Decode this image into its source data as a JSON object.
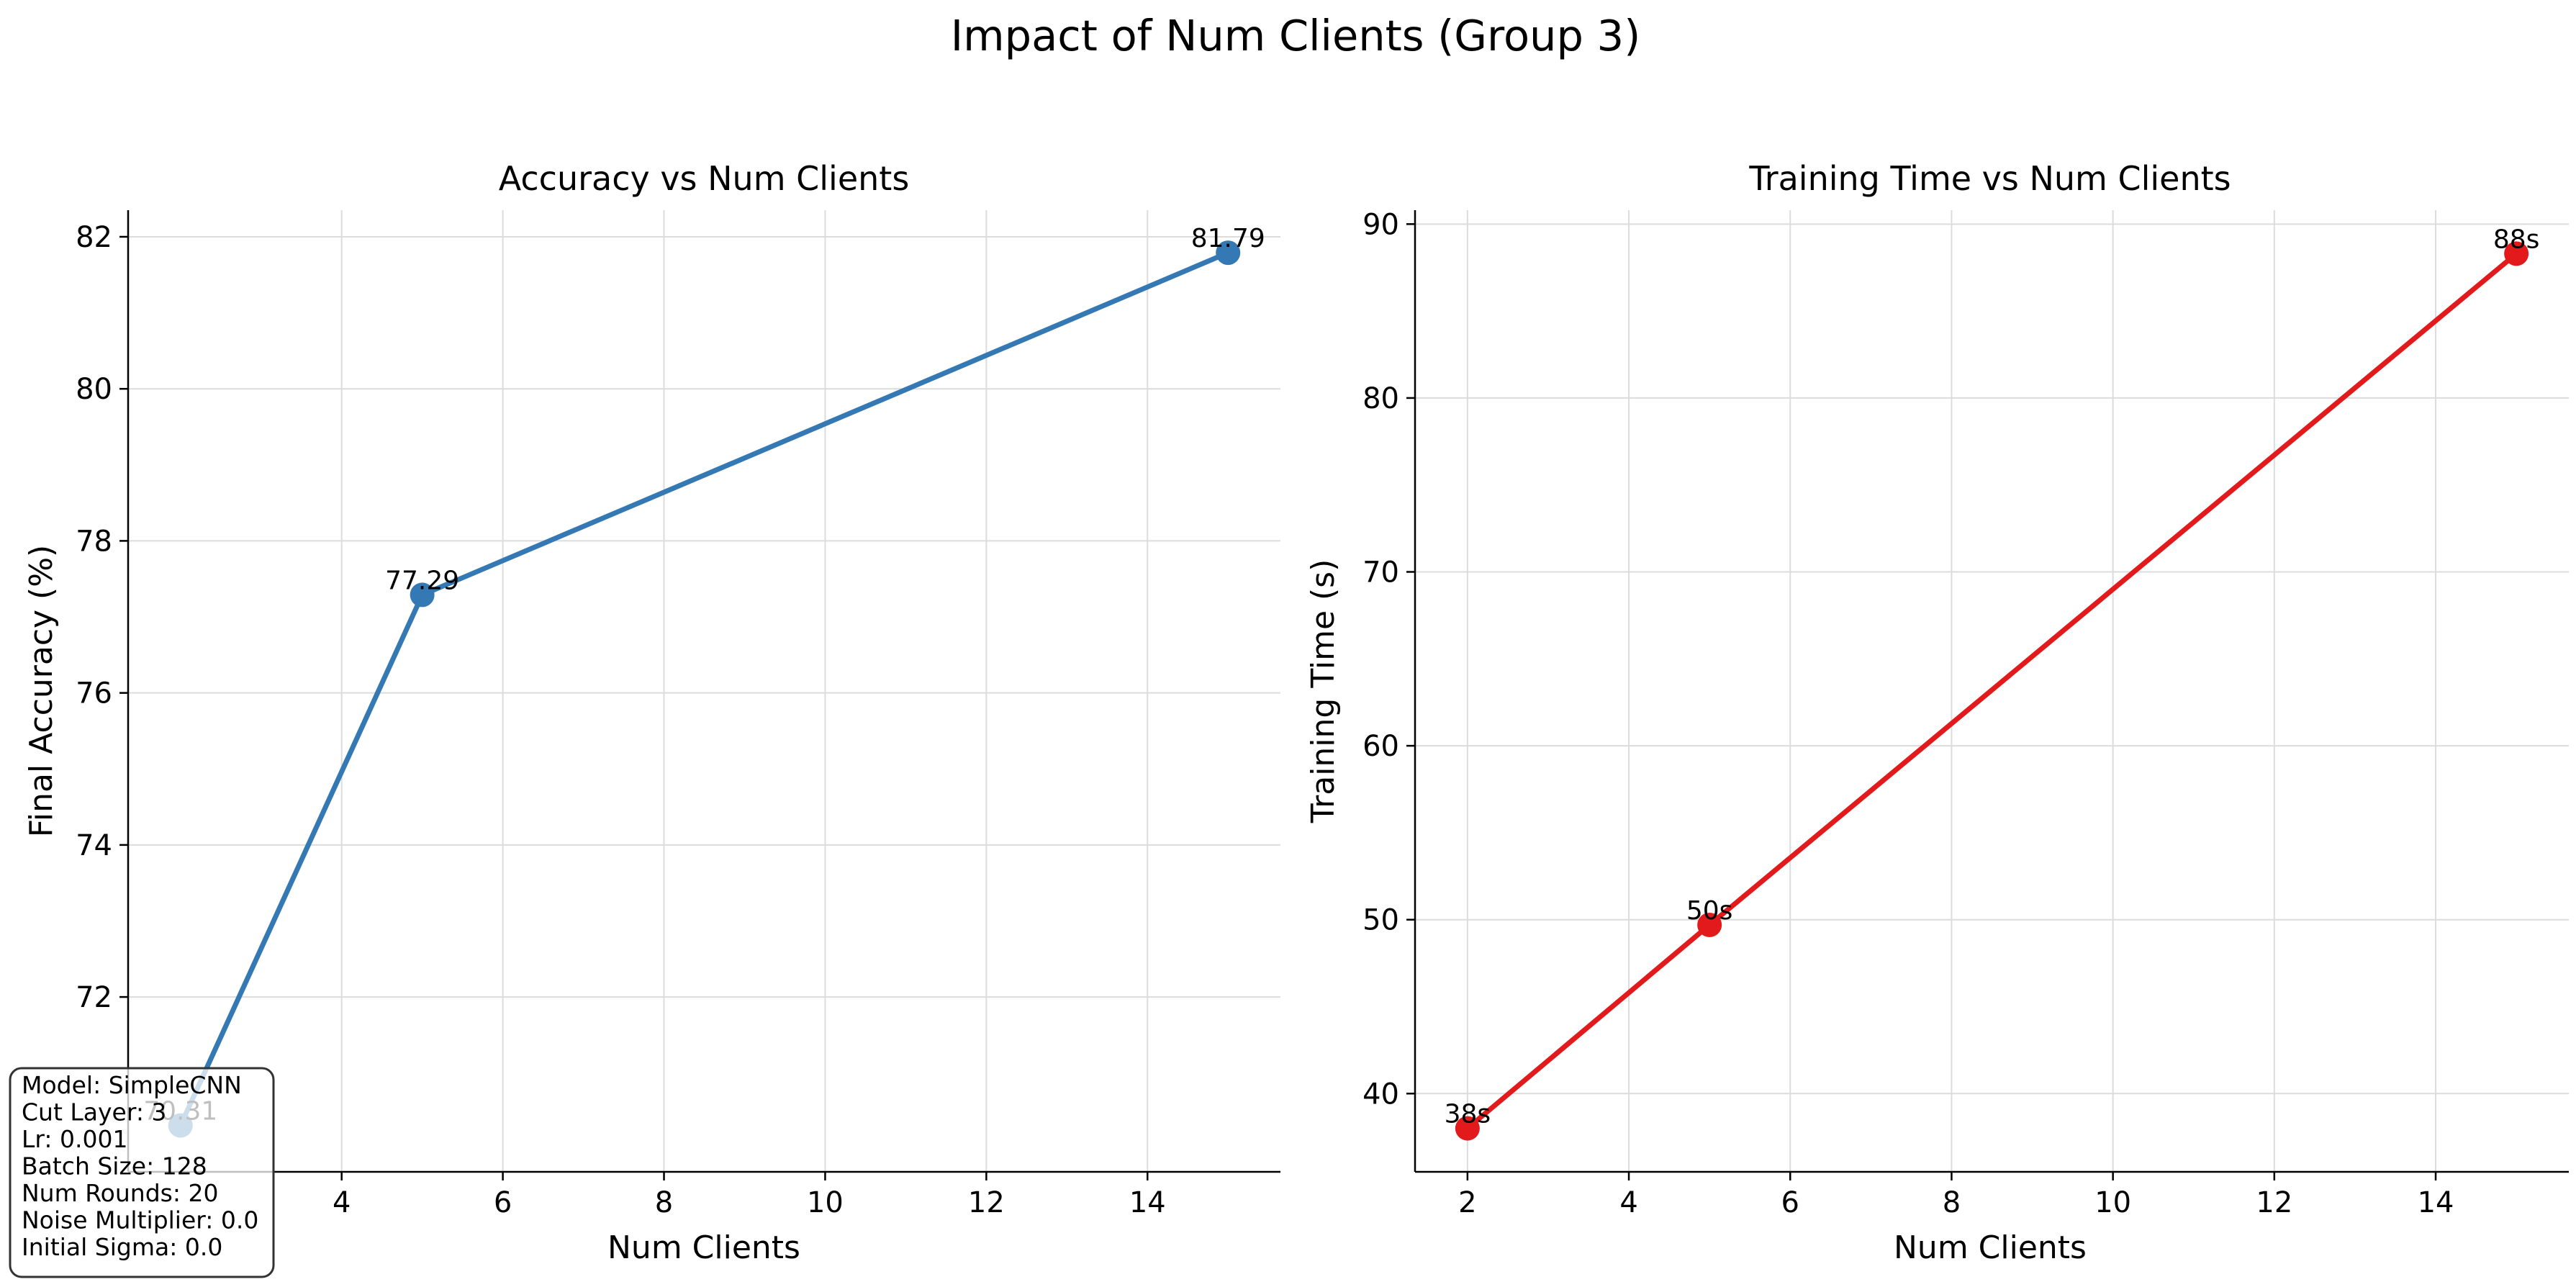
{
  "figure": {
    "title": "Impact of Num Clients (Group 3)"
  },
  "chart_data": [
    {
      "type": "line",
      "title": "Accuracy vs Num Clients",
      "xlabel": "Num Clients",
      "ylabel": "Final Accuracy (%)",
      "x": [
        2,
        5,
        15
      ],
      "series": [
        {
          "values": [
            70.31,
            77.29,
            81.79
          ],
          "labels": [
            "70.31",
            "77.29",
            "81.79"
          ],
          "color": "#3579b4"
        }
      ],
      "xlim": [
        1.35,
        15.65
      ],
      "ylim": [
        69.7,
        82.35
      ],
      "xticks": [
        4,
        6,
        8,
        10,
        12,
        14
      ],
      "yticks": [
        72,
        74,
        76,
        78,
        80,
        82
      ],
      "grid": true
    },
    {
      "type": "line",
      "title": "Training Time vs Num Clients",
      "xlabel": "Num Clients",
      "ylabel": "Training Time (s)",
      "x": [
        2,
        5,
        15
      ],
      "series": [
        {
          "values": [
            38,
            49.7,
            88.3
          ],
          "labels": [
            "38s",
            "50s",
            "88s"
          ],
          "color": "#e31a1c"
        }
      ],
      "xlim": [
        1.35,
        15.65
      ],
      "ylim": [
        35.5,
        90.8
      ],
      "xticks": [
        2,
        4,
        6,
        8,
        10,
        12,
        14
      ],
      "yticks": [
        40,
        50,
        60,
        70,
        80,
        90
      ],
      "grid": true
    }
  ],
  "info_box": {
    "lines": [
      "Model: SimpleCNN",
      "Cut Layer: 3",
      "Lr: 0.001",
      "Batch Size: 128",
      "Num Rounds: 20",
      "Noise Multiplier: 0.0",
      "Initial Sigma: 0.0"
    ]
  }
}
